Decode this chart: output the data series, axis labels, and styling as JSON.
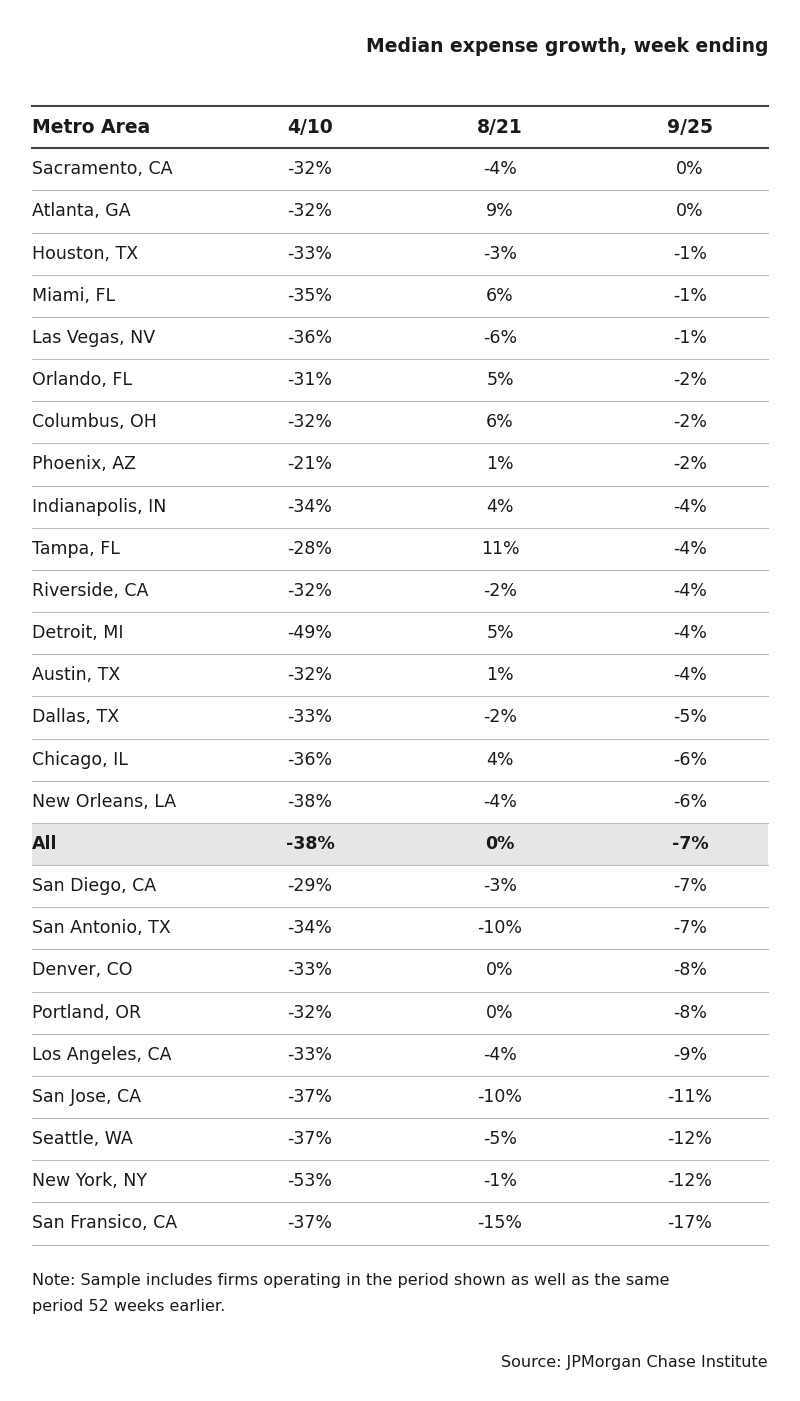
{
  "title": "Median expense growth, week ending",
  "col_header": [
    "Metro Area",
    "4/10",
    "8/21",
    "9/25"
  ],
  "rows": [
    {
      "city": "Sacramento, CA",
      "v1": "-32%",
      "v2": "-4%",
      "v3": "0%",
      "highlight": false
    },
    {
      "city": "Atlanta, GA",
      "v1": "-32%",
      "v2": "9%",
      "v3": "0%",
      "highlight": false
    },
    {
      "city": "Houston, TX",
      "v1": "-33%",
      "v2": "-3%",
      "v3": "-1%",
      "highlight": false
    },
    {
      "city": "Miami, FL",
      "v1": "-35%",
      "v2": "6%",
      "v3": "-1%",
      "highlight": false
    },
    {
      "city": "Las Vegas, NV",
      "v1": "-36%",
      "v2": "-6%",
      "v3": "-1%",
      "highlight": false
    },
    {
      "city": "Orlando, FL",
      "v1": "-31%",
      "v2": "5%",
      "v3": "-2%",
      "highlight": false
    },
    {
      "city": "Columbus, OH",
      "v1": "-32%",
      "v2": "6%",
      "v3": "-2%",
      "highlight": false
    },
    {
      "city": "Phoenix, AZ",
      "v1": "-21%",
      "v2": "1%",
      "v3": "-2%",
      "highlight": false
    },
    {
      "city": "Indianapolis, IN",
      "v1": "-34%",
      "v2": "4%",
      "v3": "-4%",
      "highlight": false
    },
    {
      "city": "Tampa, FL",
      "v1": "-28%",
      "v2": "11%",
      "v3": "-4%",
      "highlight": false
    },
    {
      "city": "Riverside, CA",
      "v1": "-32%",
      "v2": "-2%",
      "v3": "-4%",
      "highlight": false
    },
    {
      "city": "Detroit, MI",
      "v1": "-49%",
      "v2": "5%",
      "v3": "-4%",
      "highlight": false
    },
    {
      "city": "Austin, TX",
      "v1": "-32%",
      "v2": "1%",
      "v3": "-4%",
      "highlight": false
    },
    {
      "city": "Dallas, TX",
      "v1": "-33%",
      "v2": "-2%",
      "v3": "-5%",
      "highlight": false
    },
    {
      "city": "Chicago, IL",
      "v1": "-36%",
      "v2": "4%",
      "v3": "-6%",
      "highlight": false
    },
    {
      "city": "New Orleans, LA",
      "v1": "-38%",
      "v2": "-4%",
      "v3": "-6%",
      "highlight": false
    },
    {
      "city": "All",
      "v1": "-38%",
      "v2": "0%",
      "v3": "-7%",
      "highlight": true
    },
    {
      "city": "San Diego, CA",
      "v1": "-29%",
      "v2": "-3%",
      "v3": "-7%",
      "highlight": false
    },
    {
      "city": "San Antonio, TX",
      "v1": "-34%",
      "v2": "-10%",
      "v3": "-7%",
      "highlight": false
    },
    {
      "city": "Denver, CO",
      "v1": "-33%",
      "v2": "0%",
      "v3": "-8%",
      "highlight": false
    },
    {
      "city": "Portland, OR",
      "v1": "-32%",
      "v2": "0%",
      "v3": "-8%",
      "highlight": false
    },
    {
      "city": "Los Angeles, CA",
      "v1": "-33%",
      "v2": "-4%",
      "v3": "-9%",
      "highlight": false
    },
    {
      "city": "San Jose, CA",
      "v1": "-37%",
      "v2": "-10%",
      "v3": "-11%",
      "highlight": false
    },
    {
      "city": "Seattle, WA",
      "v1": "-37%",
      "v2": "-5%",
      "v3": "-12%",
      "highlight": false
    },
    {
      "city": "New York, NY",
      "v1": "-53%",
      "v2": "-1%",
      "v3": "-12%",
      "highlight": false
    },
    {
      "city": "San Fransico, CA",
      "v1": "-37%",
      "v2": "-15%",
      "v3": "-17%",
      "highlight": false
    }
  ],
  "note_line1": "Note: Sample includes firms operating in the period shown as well as the same",
  "note_line2": "period 52 weeks earlier.",
  "source": "Source: JPMorgan Chase Institute",
  "bg_color": "#ffffff",
  "highlight_color": "#e6e6e6",
  "line_color": "#bbbbbb",
  "header_line_color": "#444444",
  "text_color": "#1a1a1a",
  "title_fontsize": 13.5,
  "header_fontsize": 13.5,
  "data_fontsize": 12.5,
  "note_fontsize": 11.5
}
